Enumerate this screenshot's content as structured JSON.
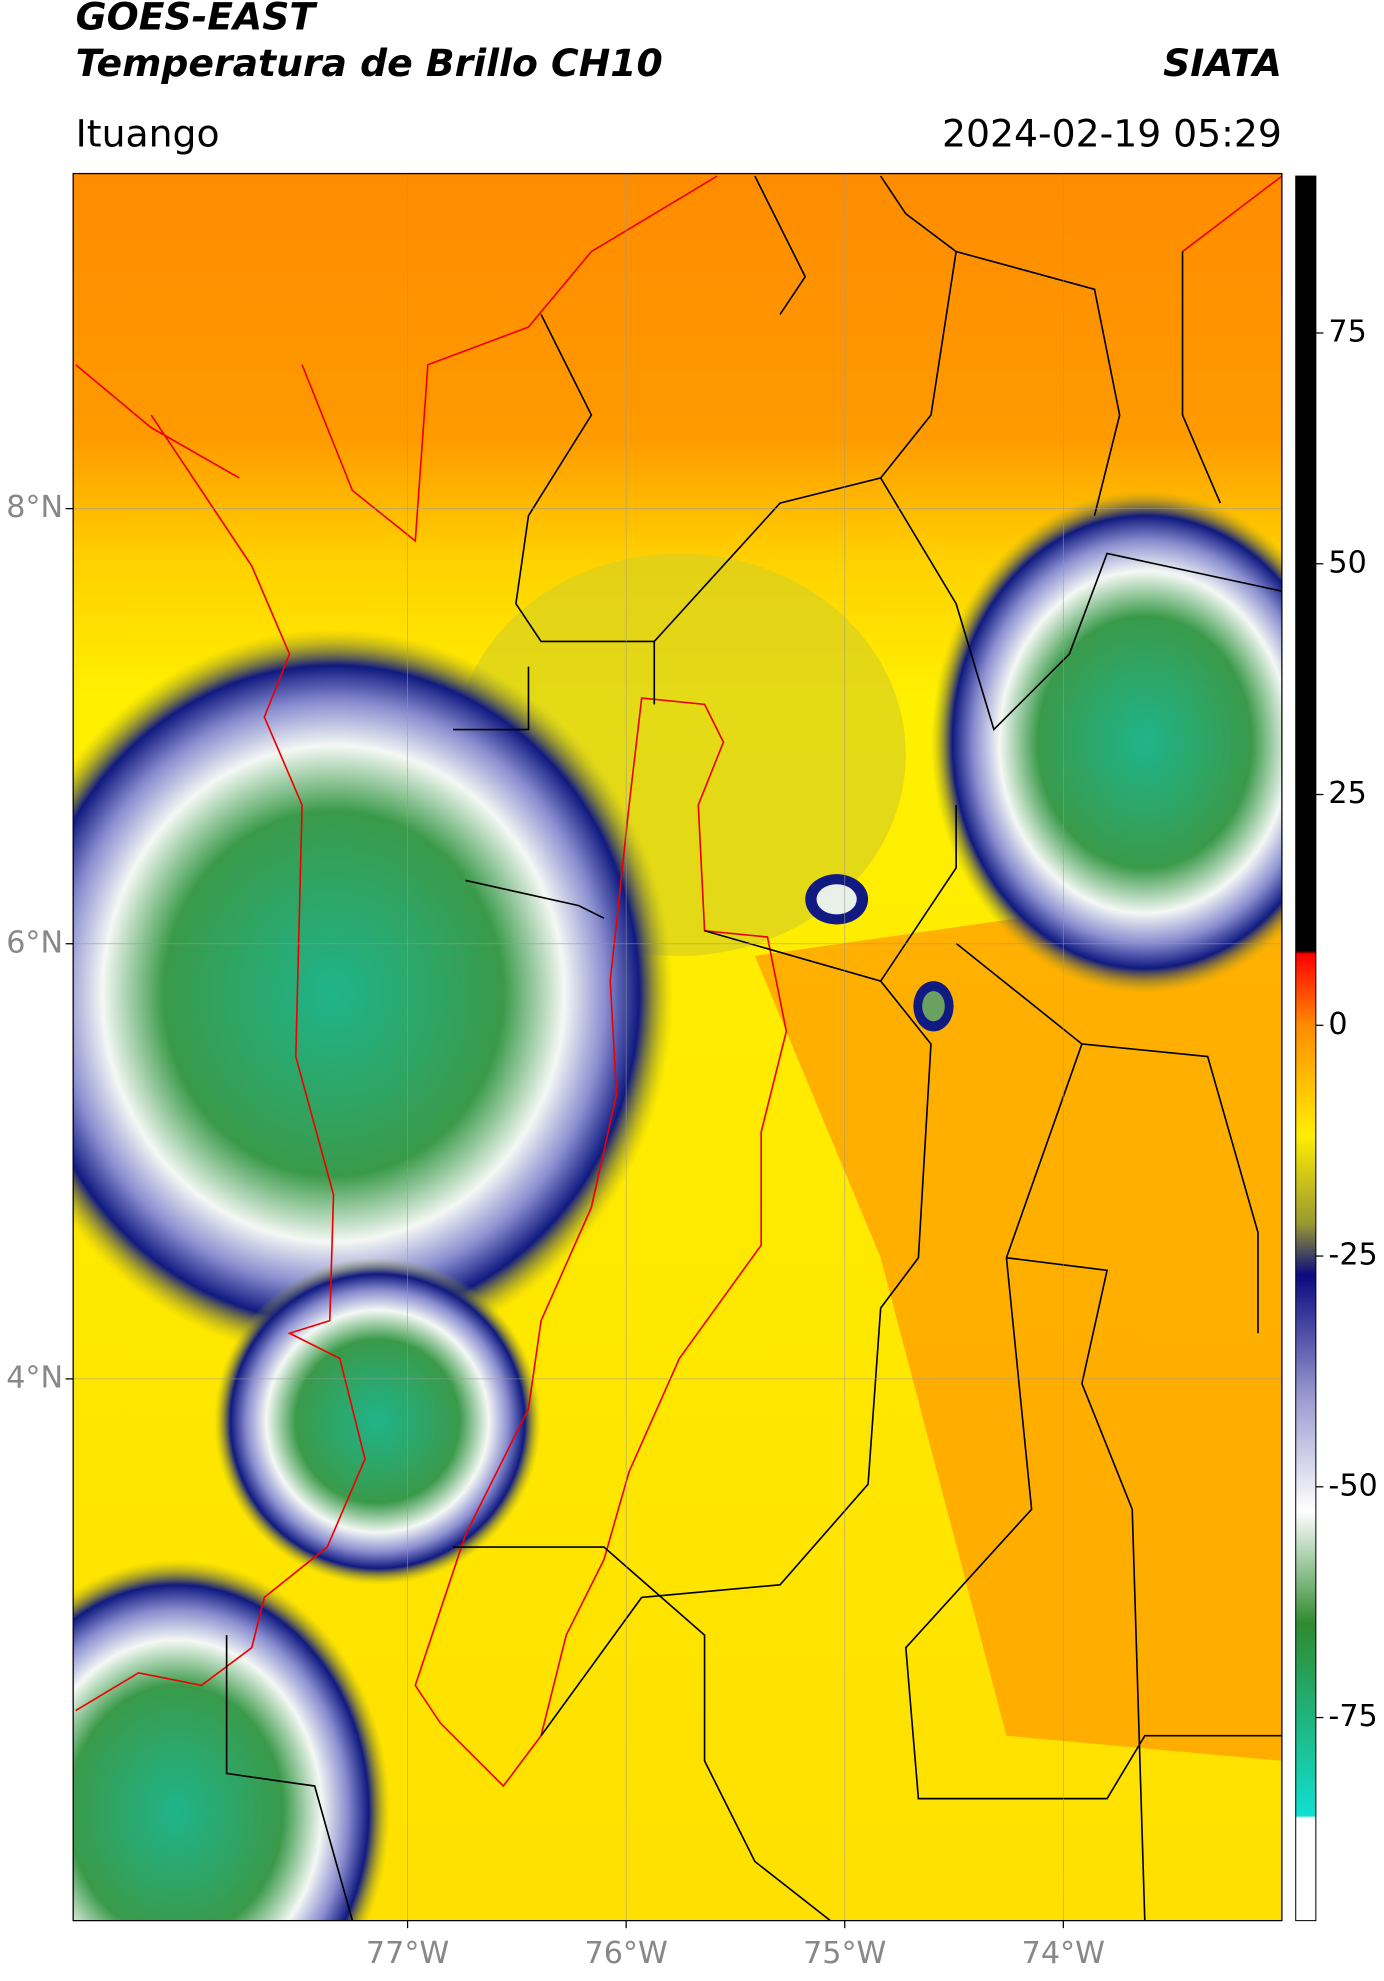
{
  "header": {
    "title": "GOES-EAST",
    "subtitle": "Temperatura de Brillo CH10",
    "source": "SIATA",
    "location": "Ituango",
    "datetime": "2024-02-19 05:29"
  },
  "map": {
    "lon_lim": [
      -78.53,
      -73.0
    ],
    "lat_lim": [
      1.51,
      9.54
    ],
    "grid": true,
    "lon_ticks": [
      {
        "value": -77,
        "label": "77°W"
      },
      {
        "value": -76,
        "label": "76°W"
      },
      {
        "value": -75,
        "label": "75°W"
      },
      {
        "value": -74,
        "label": "74°W"
      }
    ],
    "lat_ticks": [
      {
        "value": 4,
        "label": "4°N"
      },
      {
        "value": 6,
        "label": "6°N"
      },
      {
        "value": 8,
        "label": "8°N"
      }
    ]
  },
  "colorbar": {
    "lim": [
      -97,
      92
    ],
    "ticks": [
      75,
      50,
      25,
      0,
      -25,
      -50,
      -75
    ]
  }
}
